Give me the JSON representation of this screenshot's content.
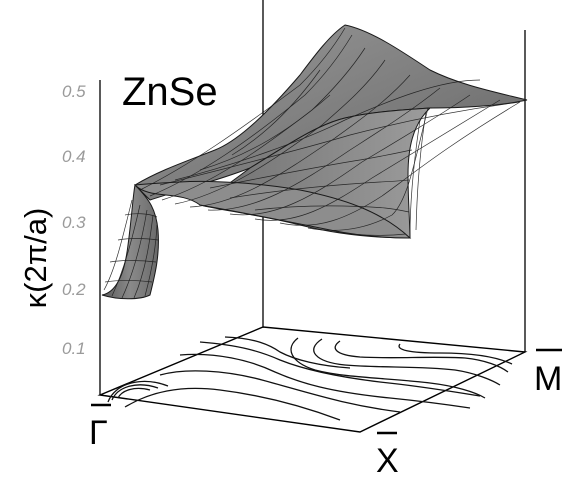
{
  "chart_data": {
    "type": "surface",
    "annotation": "ZnSe",
    "zlabel": "κ(2π/a)",
    "zlim": [
      0.0,
      0.5
    ],
    "z_ticks": [
      "0.1",
      "0.2",
      "0.3",
      "0.4",
      "0.5"
    ],
    "corner_labels": {
      "gamma": "Γ",
      "x": "X",
      "m": "M"
    },
    "corner_values": [
      {
        "point": "Γ",
        "kappa": 0.18
      },
      {
        "point": "X",
        "kappa": 0.27
      },
      {
        "point": "M",
        "kappa": 0.47
      }
    ],
    "grid": false
  },
  "colors": {
    "surface_fill": "#7a7a7a",
    "surface_edge": "#1a1a1a",
    "axis": "#000000",
    "contour": "#111111"
  }
}
